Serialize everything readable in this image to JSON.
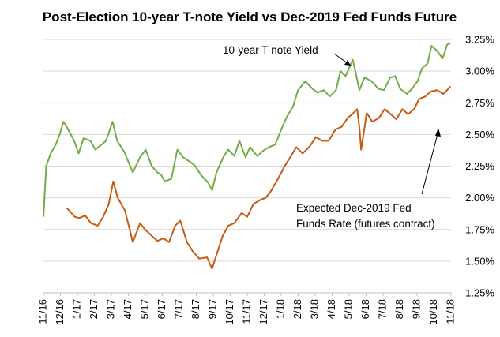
{
  "chart_data": {
    "type": "line",
    "title": "Post-Election 10-year T-note Yield vs Dec-2019 Fed Funds Future",
    "xlabel": "",
    "ylabel": "",
    "x_ticks": [
      "11/16",
      "12/16",
      "1/17",
      "2/17",
      "3/17",
      "4/17",
      "5/17",
      "6/17",
      "7/17",
      "8/17",
      "9/17",
      "10/17",
      "11/17",
      "12/17",
      "1/18",
      "2/18",
      "3/18",
      "4/18",
      "5/18",
      "6/18",
      "7/18",
      "8/18",
      "9/18",
      "10/18",
      "11/18"
    ],
    "y_ticks": [
      "1.25%",
      "1.50%",
      "1.75%",
      "2.00%",
      "2.25%",
      "2.50%",
      "2.75%",
      "3.00%",
      "3.25%"
    ],
    "ylim": [
      1.25,
      3.25
    ],
    "grid": "horizontal",
    "series": [
      {
        "name": "10-year T-note Yield",
        "color": "#70AD47",
        "x": [
          "2016-11-09",
          "2016-11-14",
          "2016-11-22",
          "2016-12-01",
          "2016-12-08",
          "2016-12-15",
          "2016-12-22",
          "2017-01-03",
          "2017-01-11",
          "2017-01-20",
          "2017-02-01",
          "2017-02-10",
          "2017-02-21",
          "2017-03-01",
          "2017-03-13",
          "2017-03-21",
          "2017-04-03",
          "2017-04-18",
          "2017-05-01",
          "2017-05-11",
          "2017-05-22",
          "2017-06-01",
          "2017-06-08",
          "2017-06-14",
          "2017-06-26",
          "2017-07-07",
          "2017-07-17",
          "2017-07-31",
          "2017-08-08",
          "2017-08-18",
          "2017-08-31",
          "2017-09-07",
          "2017-09-15",
          "2017-09-27",
          "2017-10-06",
          "2017-10-17",
          "2017-10-26",
          "2017-11-06",
          "2017-11-14",
          "2017-11-27",
          "2017-12-07",
          "2017-12-18",
          "2017-12-29",
          "2018-01-10",
          "2018-01-19",
          "2018-01-30",
          "2018-02-08",
          "2018-02-21",
          "2018-03-06",
          "2018-03-15",
          "2018-03-26",
          "2018-04-06",
          "2018-04-17",
          "2018-04-25",
          "2018-05-04",
          "2018-05-17",
          "2018-05-29",
          "2018-06-07",
          "2018-06-20",
          "2018-07-02",
          "2018-07-12",
          "2018-07-23",
          "2018-08-01",
          "2018-08-10",
          "2018-08-22",
          "2018-08-31",
          "2018-09-10",
          "2018-09-18",
          "2018-09-28",
          "2018-10-05",
          "2018-10-15",
          "2018-10-25",
          "2018-11-02",
          "2018-11-08"
        ],
        "values": [
          1.85,
          2.25,
          2.35,
          2.42,
          2.5,
          2.6,
          2.55,
          2.45,
          2.35,
          2.47,
          2.45,
          2.38,
          2.42,
          2.45,
          2.6,
          2.45,
          2.36,
          2.2,
          2.32,
          2.38,
          2.25,
          2.2,
          2.18,
          2.13,
          2.15,
          2.38,
          2.32,
          2.28,
          2.25,
          2.18,
          2.12,
          2.06,
          2.2,
          2.32,
          2.38,
          2.33,
          2.45,
          2.32,
          2.4,
          2.33,
          2.37,
          2.4,
          2.42,
          2.55,
          2.64,
          2.72,
          2.85,
          2.92,
          2.86,
          2.83,
          2.85,
          2.8,
          2.85,
          3.0,
          2.96,
          3.09,
          2.85,
          2.95,
          2.92,
          2.86,
          2.85,
          2.95,
          2.96,
          2.86,
          2.82,
          2.86,
          2.92,
          3.02,
          3.06,
          3.2,
          3.16,
          3.1,
          3.21,
          3.22
        ]
      },
      {
        "name": "Expected Dec-2019 Fed Funds Rate (futures contract)",
        "color": "#C55A11",
        "x": [
          "2016-12-21",
          "2017-01-04",
          "2017-01-12",
          "2017-01-23",
          "2017-02-02",
          "2017-02-14",
          "2017-02-24",
          "2017-03-06",
          "2017-03-14",
          "2017-03-22",
          "2017-04-04",
          "2017-04-18",
          "2017-05-01",
          "2017-05-10",
          "2017-05-22",
          "2017-06-01",
          "2017-06-12",
          "2017-06-22",
          "2017-07-03",
          "2017-07-12",
          "2017-07-24",
          "2017-08-03",
          "2017-08-15",
          "2017-08-29",
          "2017-09-07",
          "2017-09-15",
          "2017-09-26",
          "2017-10-06",
          "2017-10-17",
          "2017-10-30",
          "2017-11-09",
          "2017-11-20",
          "2017-12-01",
          "2017-12-12",
          "2017-12-21",
          "2018-01-03",
          "2018-01-15",
          "2018-01-25",
          "2018-02-05",
          "2018-02-16",
          "2018-02-28",
          "2018-03-12",
          "2018-03-23",
          "2018-04-04",
          "2018-04-16",
          "2018-04-27",
          "2018-05-08",
          "2018-05-16",
          "2018-05-25",
          "2018-05-29",
          "2018-06-01",
          "2018-06-11",
          "2018-06-21",
          "2018-07-03",
          "2018-07-13",
          "2018-07-24",
          "2018-08-03",
          "2018-08-14",
          "2018-08-24",
          "2018-09-04",
          "2018-09-13",
          "2018-09-24",
          "2018-10-04",
          "2018-10-15",
          "2018-10-26",
          "2018-11-02",
          "2018-11-08"
        ],
        "values": [
          1.92,
          1.85,
          1.84,
          1.86,
          1.8,
          1.78,
          1.85,
          1.95,
          2.13,
          2.0,
          1.9,
          1.65,
          1.8,
          1.75,
          1.7,
          1.66,
          1.68,
          1.65,
          1.78,
          1.82,
          1.65,
          1.58,
          1.52,
          1.53,
          1.44,
          1.55,
          1.7,
          1.78,
          1.8,
          1.88,
          1.85,
          1.95,
          1.98,
          2.0,
          2.05,
          2.15,
          2.25,
          2.32,
          2.4,
          2.35,
          2.4,
          2.48,
          2.45,
          2.45,
          2.54,
          2.56,
          2.63,
          2.66,
          2.7,
          2.55,
          2.38,
          2.67,
          2.6,
          2.63,
          2.7,
          2.66,
          2.62,
          2.7,
          2.66,
          2.7,
          2.78,
          2.8,
          2.84,
          2.85,
          2.82,
          2.85,
          2.88
        ]
      }
    ],
    "annotations": [
      {
        "text": "10-year T-note Yield"
      },
      {
        "text": "Expected Dec-2019 Fed"
      },
      {
        "text": "Funds Rate (futures contract)"
      }
    ]
  }
}
